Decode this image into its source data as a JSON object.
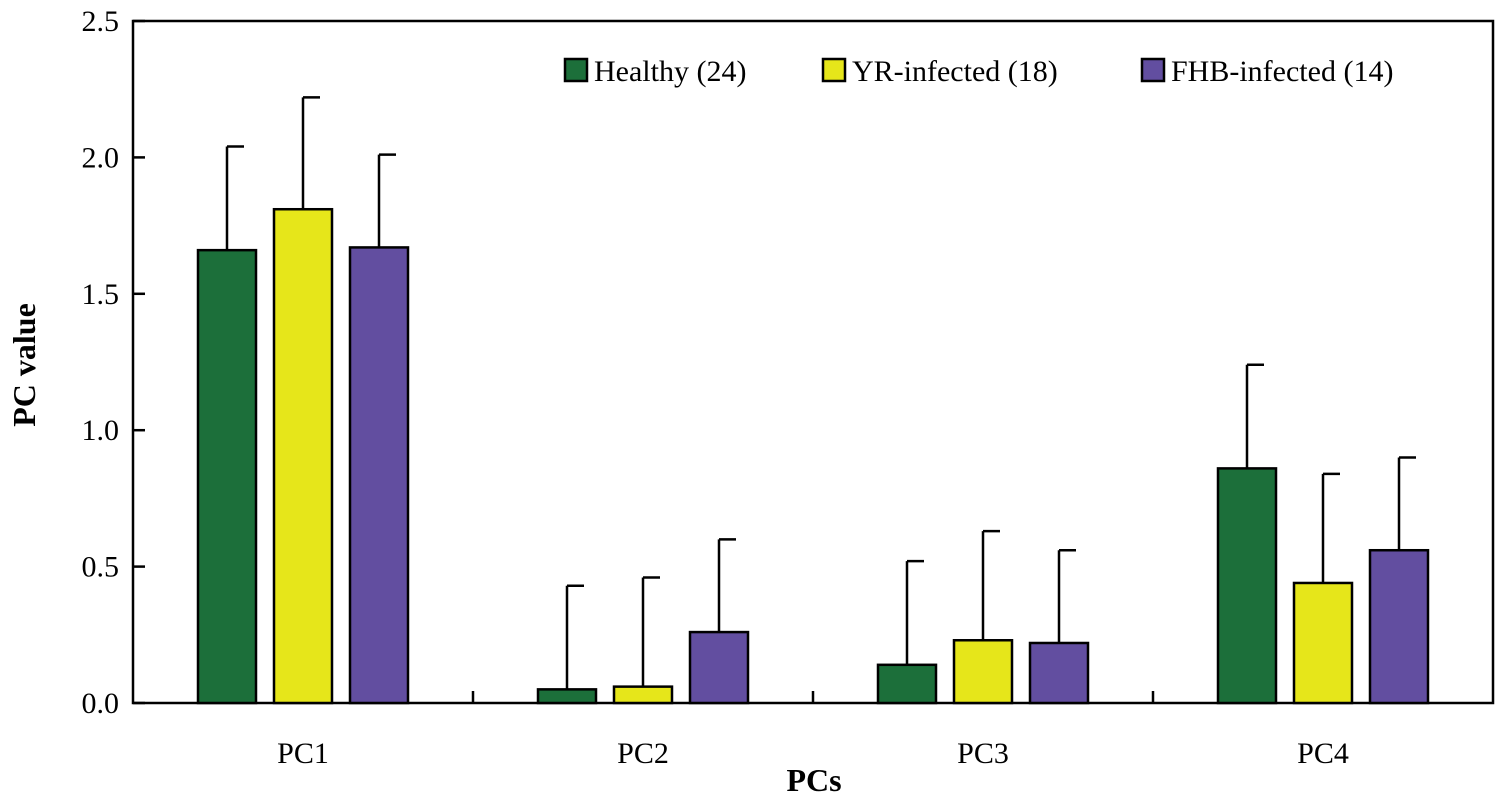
{
  "chart_data": {
    "type": "bar",
    "title": "",
    "xlabel": "PCs",
    "ylabel": "PC value",
    "ylim": [
      0,
      2.5
    ],
    "yticks": [
      0.0,
      0.5,
      1.0,
      1.5,
      2.0,
      2.5
    ],
    "ytick_labels": [
      "0.0",
      "0.5",
      "1.0",
      "1.5",
      "2.0",
      "2.5"
    ],
    "categories": [
      "PC1",
      "PC2",
      "PC3",
      "PC4"
    ],
    "legend_position": "top-right",
    "error_bars": "upper standard deviation",
    "series": [
      {
        "name": "Healthy (24)",
        "color": "#1c6f3a",
        "values": [
          1.66,
          0.05,
          0.14,
          0.86
        ],
        "errors": [
          0.38,
          0.38,
          0.38,
          0.38
        ]
      },
      {
        "name": "YR-infected (18)",
        "color": "#e6e61a",
        "values": [
          1.81,
          0.06,
          0.23,
          0.44
        ],
        "errors": [
          0.41,
          0.4,
          0.4,
          0.4
        ]
      },
      {
        "name": "FHB-infected (14)",
        "color": "#624ea0",
        "values": [
          1.67,
          0.26,
          0.22,
          0.56
        ],
        "errors": [
          0.34,
          0.34,
          0.34,
          0.34
        ]
      }
    ]
  }
}
